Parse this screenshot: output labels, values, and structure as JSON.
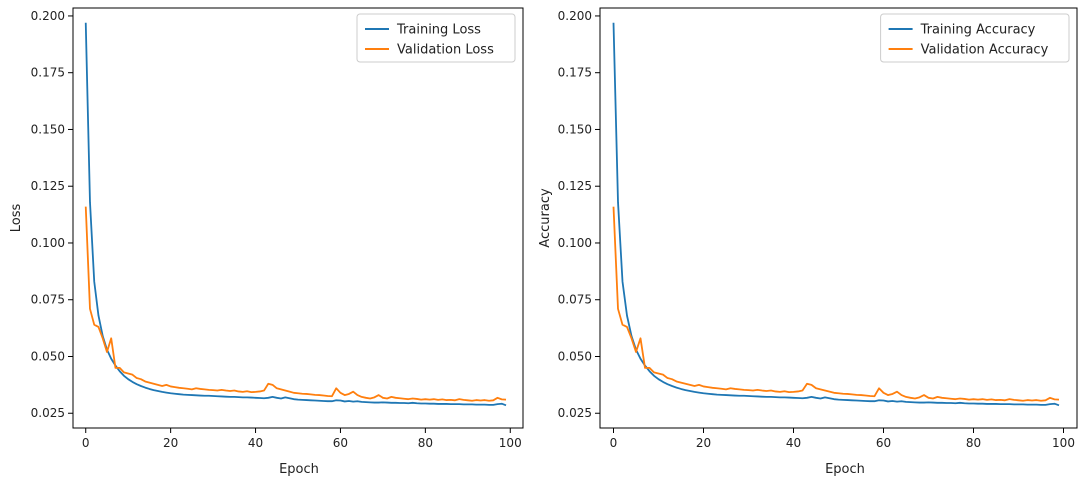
{
  "chart_data": [
    {
      "type": "line",
      "title": "",
      "xlabel": "Epoch",
      "ylabel": "Loss",
      "xlim": [
        -3,
        103
      ],
      "ylim": [
        0.0185,
        0.2035
      ],
      "xticks": [
        0,
        20,
        40,
        60,
        80,
        100
      ],
      "xtick_labels": [
        "0",
        "20",
        "40",
        "60",
        "80",
        "100"
      ],
      "yticks": [
        0.025,
        0.05,
        0.075,
        0.1,
        0.125,
        0.15,
        0.175,
        0.2
      ],
      "ytick_labels": [
        "0.025",
        "0.050",
        "0.075",
        "0.100",
        "0.125",
        "0.150",
        "0.175",
        "0.200"
      ],
      "grid": false,
      "legend_position": "top-right",
      "x_note": "epochs 0 to 99",
      "series": [
        {
          "name": "Training Loss",
          "color": "#1f77b4",
          "values": [
            0.197,
            0.118,
            0.083,
            0.068,
            0.059,
            0.053,
            0.049,
            0.046,
            0.0435,
            0.0415,
            0.04,
            0.0388,
            0.0378,
            0.037,
            0.0363,
            0.0357,
            0.0352,
            0.0348,
            0.0344,
            0.0341,
            0.0338,
            0.0336,
            0.0334,
            0.0332,
            0.0331,
            0.033,
            0.0329,
            0.0328,
            0.0327,
            0.0327,
            0.0326,
            0.0325,
            0.0324,
            0.0323,
            0.0322,
            0.0322,
            0.0321,
            0.032,
            0.032,
            0.0319,
            0.0318,
            0.0317,
            0.0316,
            0.0318,
            0.0322,
            0.0318,
            0.0315,
            0.032,
            0.0316,
            0.0312,
            0.031,
            0.0309,
            0.0308,
            0.0307,
            0.0306,
            0.0305,
            0.0304,
            0.0303,
            0.0303,
            0.0307,
            0.0306,
            0.0302,
            0.0304,
            0.0301,
            0.0303,
            0.03,
            0.0299,
            0.0298,
            0.0297,
            0.0297,
            0.0298,
            0.0297,
            0.0296,
            0.0296,
            0.0295,
            0.0295,
            0.0294,
            0.0296,
            0.0294,
            0.0293,
            0.0293,
            0.0292,
            0.0292,
            0.0291,
            0.0291,
            0.0291,
            0.029,
            0.029,
            0.029,
            0.0289,
            0.0289,
            0.0289,
            0.0288,
            0.0288,
            0.0288,
            0.0287,
            0.0287,
            0.029,
            0.0292,
            0.0285
          ]
        },
        {
          "name": "Validation Loss",
          "color": "#ff7f0e",
          "values": [
            0.116,
            0.071,
            0.064,
            0.063,
            0.058,
            0.052,
            0.058,
            0.045,
            0.045,
            0.043,
            0.0425,
            0.042,
            0.0405,
            0.04,
            0.039,
            0.0385,
            0.038,
            0.0375,
            0.037,
            0.0375,
            0.0368,
            0.0365,
            0.0362,
            0.036,
            0.0358,
            0.0355,
            0.036,
            0.0357,
            0.0355,
            0.0353,
            0.0352,
            0.035,
            0.0353,
            0.035,
            0.0348,
            0.035,
            0.0346,
            0.0344,
            0.0347,
            0.0343,
            0.0344,
            0.0346,
            0.035,
            0.038,
            0.0375,
            0.036,
            0.0355,
            0.035,
            0.0345,
            0.034,
            0.0338,
            0.0336,
            0.0335,
            0.0333,
            0.0331,
            0.033,
            0.0328,
            0.0326,
            0.0325,
            0.036,
            0.034,
            0.033,
            0.0335,
            0.0345,
            0.033,
            0.0322,
            0.0318,
            0.0315,
            0.032,
            0.033,
            0.0318,
            0.0315,
            0.0322,
            0.0318,
            0.0316,
            0.0314,
            0.0312,
            0.0315,
            0.0313,
            0.031,
            0.0312,
            0.031,
            0.0312,
            0.0309,
            0.0311,
            0.0308,
            0.0309,
            0.0307,
            0.0312,
            0.0309,
            0.0307,
            0.0305,
            0.0308,
            0.0306,
            0.0308,
            0.0305,
            0.0307,
            0.0318,
            0.0311,
            0.031
          ]
        }
      ]
    },
    {
      "type": "line",
      "title": "",
      "xlabel": "Epoch",
      "ylabel": "Accuracy",
      "xlim": [
        -3,
        103
      ],
      "ylim": [
        0.0185,
        0.2035
      ],
      "xticks": [
        0,
        20,
        40,
        60,
        80,
        100
      ],
      "xtick_labels": [
        "0",
        "20",
        "40",
        "60",
        "80",
        "100"
      ],
      "yticks": [
        0.025,
        0.05,
        0.075,
        0.1,
        0.125,
        0.15,
        0.175,
        0.2
      ],
      "ytick_labels": [
        "0.025",
        "0.050",
        "0.075",
        "0.100",
        "0.125",
        "0.150",
        "0.175",
        "0.200"
      ],
      "grid": false,
      "legend_position": "top-right",
      "x_note": "epochs 0 to 99",
      "series": [
        {
          "name": "Training Accuracy",
          "color": "#1f77b4",
          "values": [
            0.197,
            0.118,
            0.083,
            0.068,
            0.059,
            0.053,
            0.049,
            0.046,
            0.0435,
            0.0415,
            0.04,
            0.0388,
            0.0378,
            0.037,
            0.0363,
            0.0357,
            0.0352,
            0.0348,
            0.0344,
            0.0341,
            0.0338,
            0.0336,
            0.0334,
            0.0332,
            0.0331,
            0.033,
            0.0329,
            0.0328,
            0.0327,
            0.0327,
            0.0326,
            0.0325,
            0.0324,
            0.0323,
            0.0322,
            0.0322,
            0.0321,
            0.032,
            0.032,
            0.0319,
            0.0318,
            0.0317,
            0.0316,
            0.0318,
            0.0322,
            0.0318,
            0.0315,
            0.032,
            0.0316,
            0.0312,
            0.031,
            0.0309,
            0.0308,
            0.0307,
            0.0306,
            0.0305,
            0.0304,
            0.0303,
            0.0303,
            0.0307,
            0.0306,
            0.0302,
            0.0304,
            0.0301,
            0.0303,
            0.03,
            0.0299,
            0.0298,
            0.0297,
            0.0297,
            0.0298,
            0.0297,
            0.0296,
            0.0296,
            0.0295,
            0.0295,
            0.0294,
            0.0296,
            0.0294,
            0.0293,
            0.0293,
            0.0292,
            0.0292,
            0.0291,
            0.0291,
            0.0291,
            0.029,
            0.029,
            0.029,
            0.0289,
            0.0289,
            0.0289,
            0.0288,
            0.0288,
            0.0288,
            0.0287,
            0.0287,
            0.029,
            0.0292,
            0.0285
          ]
        },
        {
          "name": "Validation Accuracy",
          "color": "#ff7f0e",
          "values": [
            0.116,
            0.071,
            0.064,
            0.063,
            0.058,
            0.052,
            0.058,
            0.045,
            0.045,
            0.043,
            0.0425,
            0.042,
            0.0405,
            0.04,
            0.039,
            0.0385,
            0.038,
            0.0375,
            0.037,
            0.0375,
            0.0368,
            0.0365,
            0.0362,
            0.036,
            0.0358,
            0.0355,
            0.036,
            0.0357,
            0.0355,
            0.0353,
            0.0352,
            0.035,
            0.0353,
            0.035,
            0.0348,
            0.035,
            0.0346,
            0.0344,
            0.0347,
            0.0343,
            0.0344,
            0.0346,
            0.035,
            0.038,
            0.0375,
            0.036,
            0.0355,
            0.035,
            0.0345,
            0.034,
            0.0338,
            0.0336,
            0.0335,
            0.0333,
            0.0331,
            0.033,
            0.0328,
            0.0326,
            0.0325,
            0.036,
            0.034,
            0.033,
            0.0335,
            0.0345,
            0.033,
            0.0322,
            0.0318,
            0.0315,
            0.032,
            0.033,
            0.0318,
            0.0315,
            0.0322,
            0.0318,
            0.0316,
            0.0314,
            0.0312,
            0.0315,
            0.0313,
            0.031,
            0.0312,
            0.031,
            0.0312,
            0.0309,
            0.0311,
            0.0308,
            0.0309,
            0.0307,
            0.0312,
            0.0309,
            0.0307,
            0.0305,
            0.0308,
            0.0306,
            0.0308,
            0.0305,
            0.0307,
            0.0318,
            0.0311,
            0.031
          ]
        }
      ]
    }
  ]
}
